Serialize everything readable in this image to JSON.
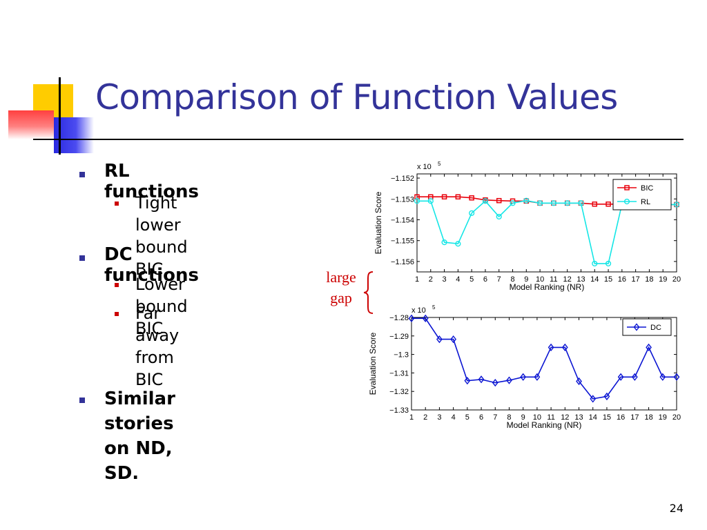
{
  "slide": {
    "title": "Comparison of Function Values",
    "page_number": "24",
    "gap_label_line1": "large",
    "gap_label_line2": "gap"
  },
  "bullets": [
    {
      "label": "RL functions",
      "sub": [
        {
          "line1": "Tight lower",
          "line2": "bound BIC"
        }
      ]
    },
    {
      "label": "DC functions",
      "sub": [
        {
          "line1": "Lower bound BIC",
          "line2": ""
        },
        {
          "line1": "Far away from",
          "line2": "BIC"
        }
      ]
    },
    {
      "label_line1": "Similar stories",
      "label_line2": "on ND, SD."
    }
  ],
  "colors": {
    "title": "#333399",
    "bic": "#e8000b",
    "rl": "#14e6e6",
    "dc": "#0a14d2",
    "gap": "#cc0000"
  },
  "chart_data": [
    {
      "type": "line",
      "ylabel": "Evaluation Score",
      "xlabel": "Model Ranking (NR)",
      "multiplier": "x 10",
      "multiplier_exp": "5",
      "x": [
        1,
        2,
        3,
        4,
        5,
        6,
        7,
        8,
        9,
        10,
        11,
        12,
        13,
        14,
        15,
        16,
        17,
        18,
        19,
        20
      ],
      "ylim": [
        -1.1565,
        -1.1518
      ],
      "yticks": [
        -1.152,
        -1.153,
        -1.154,
        -1.155,
        -1.156
      ],
      "ytick_labels": [
        "−1.152",
        "−1.153",
        "−1.154",
        "−1.155",
        "−1.156"
      ],
      "legend": "top-right",
      "grid": false,
      "series": [
        {
          "name": "BIC",
          "marker": "square",
          "values": [
            -1.1529,
            -1.1529,
            -1.1529,
            -1.1529,
            -1.15295,
            -1.15305,
            -1.15308,
            -1.1531,
            -1.1531,
            -1.1532,
            -1.1532,
            -1.1532,
            -1.1532,
            -1.15325,
            -1.15325,
            -1.15325,
            -1.15327,
            -1.15327,
            -1.15327,
            -1.15327
          ]
        },
        {
          "name": "RL",
          "marker": "circle",
          "values": [
            -1.1531,
            -1.1531,
            -1.15508,
            -1.15515,
            -1.15368,
            -1.1531,
            -1.15385,
            -1.1532,
            -1.15308,
            -1.1532,
            -1.1532,
            -1.1532,
            -1.1532,
            -1.1561,
            -1.1561,
            -1.15325,
            -1.15327,
            -1.15327,
            -1.15327,
            -1.15327
          ]
        }
      ]
    },
    {
      "type": "line",
      "ylabel": "Evaluation Score",
      "xlabel": "Model Ranking (NR)",
      "multiplier": "x 10",
      "multiplier_exp": "5",
      "x": [
        1,
        2,
        3,
        4,
        5,
        6,
        7,
        8,
        9,
        10,
        11,
        12,
        13,
        14,
        15,
        16,
        17,
        18,
        19,
        20
      ],
      "ylim": [
        -1.33,
        -1.28
      ],
      "yticks": [
        -1.28,
        -1.29,
        -1.3,
        -1.31,
        -1.32,
        -1.33
      ],
      "ytick_labels": [
        "−1.28",
        "−1.29",
        "−1.3",
        "−1.31",
        "−1.32",
        "−1.33"
      ],
      "legend": "top-right",
      "grid": false,
      "series": [
        {
          "name": "DC",
          "marker": "diamond",
          "values": [
            -1.2805,
            -1.2805,
            -1.2918,
            -1.2918,
            -1.3142,
            -1.3135,
            -1.3153,
            -1.314,
            -1.3122,
            -1.3122,
            -1.2962,
            -1.2962,
            -1.3145,
            -1.324,
            -1.3227,
            -1.3122,
            -1.3122,
            -1.2962,
            -1.3122,
            -1.3122
          ]
        }
      ]
    }
  ]
}
